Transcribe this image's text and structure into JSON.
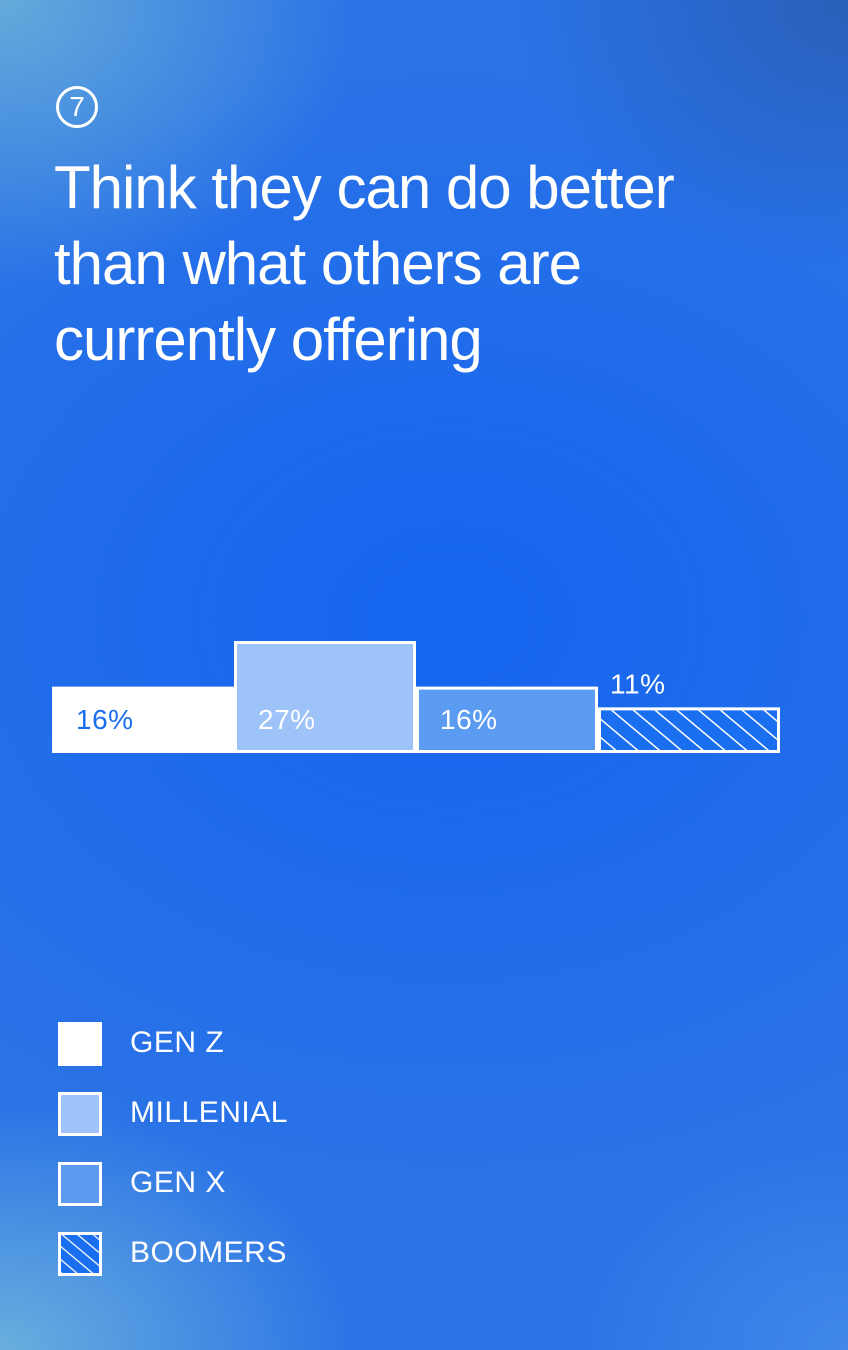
{
  "header": {
    "number": "7",
    "title": "Think they can do better than what others are currently offering"
  },
  "colors": {
    "background": "#1a6ff0",
    "gen_z": "#ffffff",
    "millenial": "#9ec3f8",
    "gen_x": "#5b9bf2",
    "boomers_hatch": "#1a6ff0",
    "label_dark": "#1a6ff0"
  },
  "chart_data": {
    "type": "bar",
    "categories": [
      "GEN Z",
      "MILLENIAL",
      "GEN X",
      "BOOMERS"
    ],
    "values": [
      16,
      27,
      16,
      11
    ],
    "data_labels": [
      "16%",
      "27%",
      "16%",
      "11%"
    ],
    "ylim": [
      0,
      27
    ],
    "grid": false,
    "legend": "bottom-left"
  },
  "legend": [
    {
      "label": "GEN Z",
      "style": "solid-white"
    },
    {
      "label": "MILLENIAL",
      "style": "light-blue"
    },
    {
      "label": "GEN X",
      "style": "mid-blue"
    },
    {
      "label": "BOOMERS",
      "style": "hatched"
    }
  ]
}
